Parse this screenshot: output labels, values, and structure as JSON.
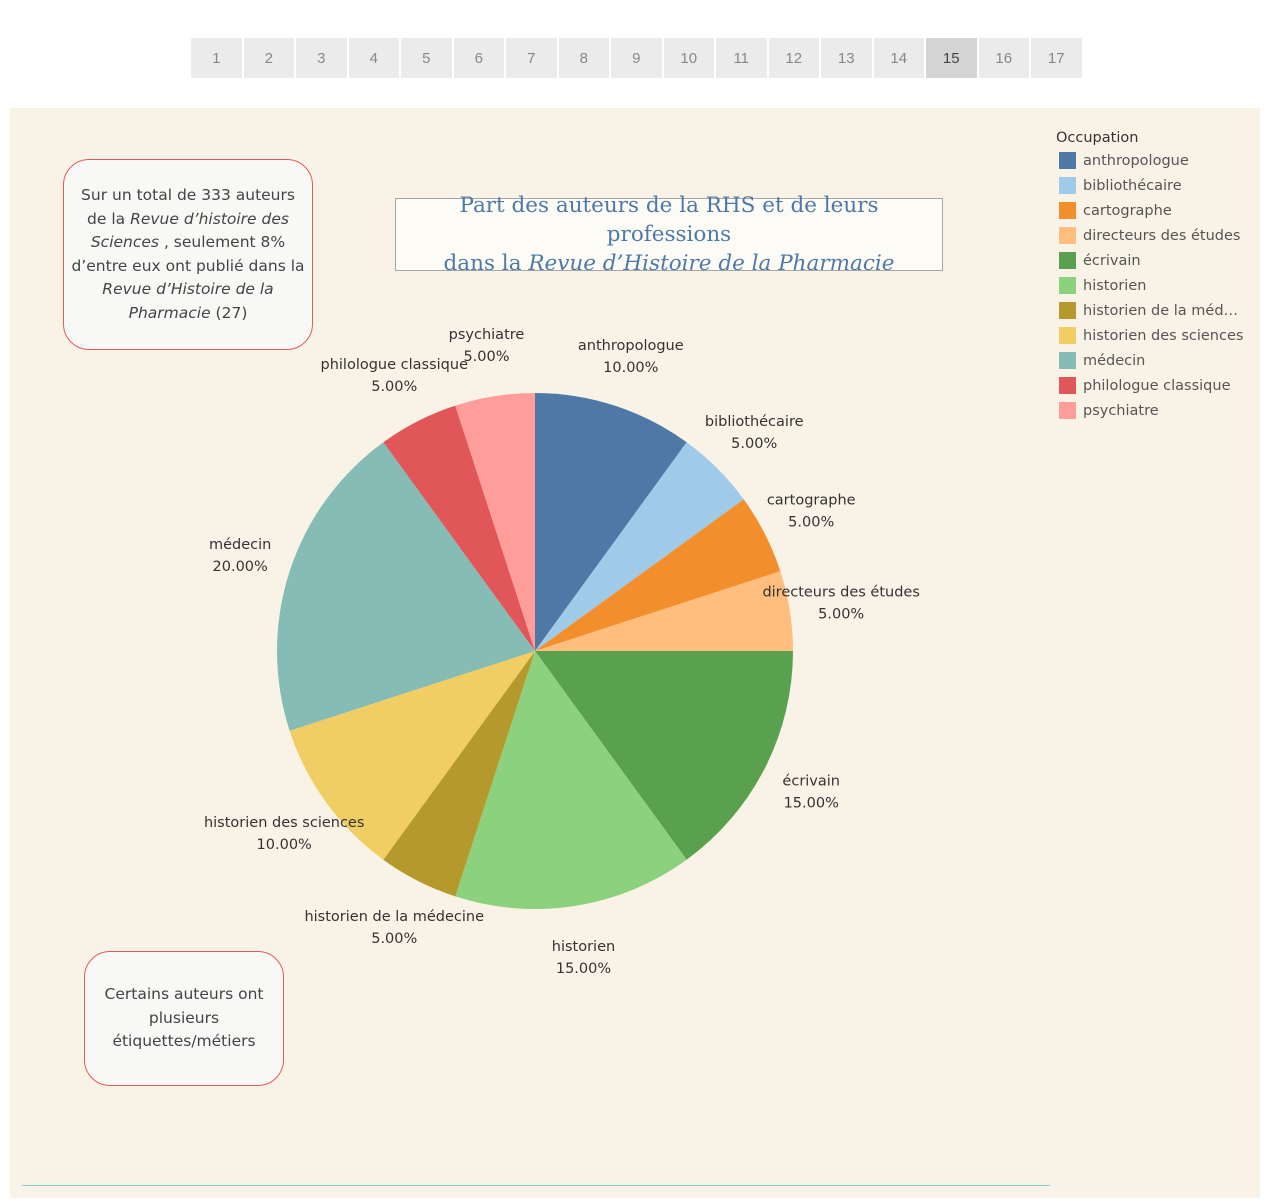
{
  "pager": {
    "pages": [
      "1",
      "2",
      "3",
      "4",
      "5",
      "6",
      "7",
      "8",
      "9",
      "10",
      "11",
      "12",
      "13",
      "14",
      "15",
      "16",
      "17"
    ],
    "active": "15"
  },
  "notes": {
    "total": {
      "part1": "Sur un total de 333 auteurs de la ",
      "italic1": "Revue d’histoire des Sciences",
      "part2": " , seulement 8% d’entre eux ont publié dans la ",
      "italic2": "Revue d’Histoire de la Pharmacie",
      "part3": "  (27)"
    },
    "tags": "Certains auteurs ont plusieurs étiquettes/métiers"
  },
  "title": {
    "line1": "Part des auteurs de la RHS et de leurs professions",
    "line2_prefix": "dans la ",
    "line2_italic": "Revue d’Histoire de la Pharmacie"
  },
  "legend": {
    "title": "Occupation"
  },
  "chart_data": {
    "type": "pie",
    "title": "Part des auteurs de la RHS et de leurs professions dans la Revue d’Histoire de la Pharmacie",
    "legend_title": "Occupation",
    "legend_position": "top-right",
    "slices": [
      {
        "name": "anthropologue",
        "legend_name": "anthropologue",
        "value": 10.0,
        "label": "10.00%",
        "color": "#4e79a7"
      },
      {
        "name": "bibliothécaire",
        "legend_name": "bibliothécaire",
        "value": 5.0,
        "label": "5.00%",
        "color": "#a0cbe8"
      },
      {
        "name": "cartographe",
        "legend_name": "cartographe",
        "value": 5.0,
        "label": "5.00%",
        "color": "#f28e2b"
      },
      {
        "name": "directeurs des études",
        "legend_name": "directeurs des études",
        "value": 5.0,
        "label": "5.00%",
        "color": "#ffbe7d"
      },
      {
        "name": "écrivain",
        "legend_name": "écrivain",
        "value": 15.0,
        "label": "15.00%",
        "color": "#59a14f"
      },
      {
        "name": "historien",
        "legend_name": "historien",
        "value": 15.0,
        "label": "15.00%",
        "color": "#8cd17d"
      },
      {
        "name": "historien de la médecine",
        "legend_name": "historien de la médec..",
        "value": 5.0,
        "label": "5.00%",
        "color": "#b6992d"
      },
      {
        "name": "historien des sciences",
        "legend_name": "historien des sciences",
        "value": 10.0,
        "label": "10.00%",
        "color": "#f1ce63"
      },
      {
        "name": "médecin",
        "legend_name": "médecin",
        "value": 20.0,
        "label": "20.00%",
        "color": "#86bcb6"
      },
      {
        "name": "philologue classique",
        "legend_name": "philologue classique",
        "value": 5.0,
        "label": "5.00%",
        "color": "#e15759"
      },
      {
        "name": "psychiatre",
        "legend_name": "psychiatre",
        "value": 5.0,
        "label": "5.00%",
        "color": "#ff9d9a"
      }
    ]
  }
}
